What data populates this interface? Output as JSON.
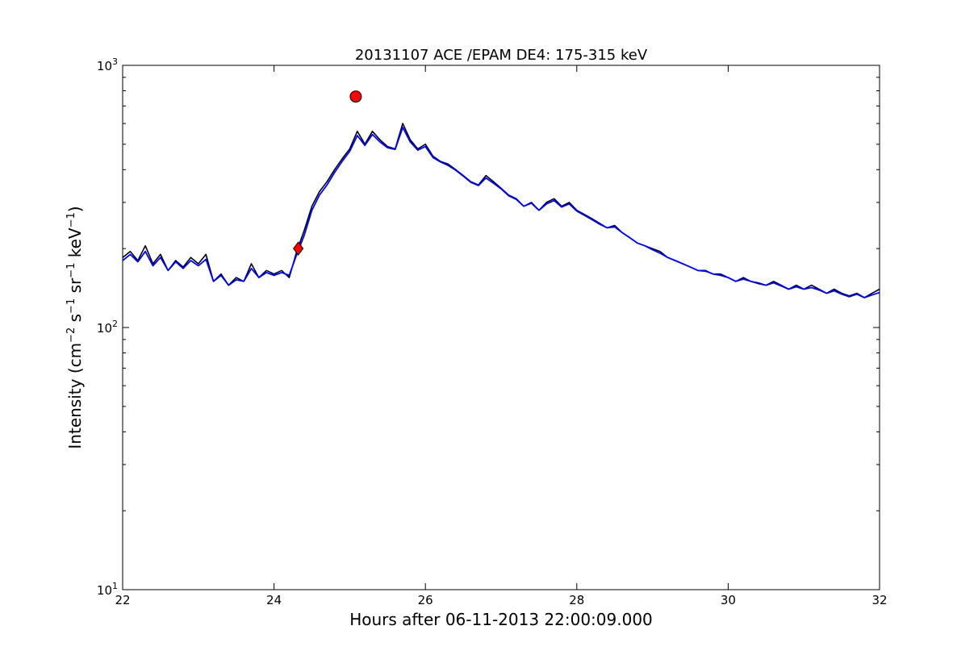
{
  "chart_data": {
    "type": "line",
    "title": "20131107 ACE /EPAM DE4: 175-315 keV",
    "xlabel": "Hours after 06-11-2013 22:00:09.000",
    "ylabel": {
      "prefix": "Intensity (cm",
      "sup1": "−2",
      "mid1": " s",
      "sup2": "−1",
      "mid2": " sr",
      "sup3": "−1",
      "mid3": " keV",
      "sup4": "−1",
      "suffix": ")"
    },
    "xlim": [
      22,
      32
    ],
    "ylim": [
      10,
      1000
    ],
    "yscale": "log",
    "grid": false,
    "x_ticks": [
      "22",
      "24",
      "26",
      "28",
      "30",
      "32"
    ],
    "y_ticks": [
      {
        "base": "10",
        "exp": "1"
      },
      {
        "base": "10",
        "exp": "2"
      },
      {
        "base": "10",
        "exp": "3"
      }
    ],
    "series": [
      {
        "color": "#000000",
        "x": [
          22.0,
          22.1,
          22.2,
          22.3,
          22.4,
          22.5,
          22.6,
          22.7,
          22.8,
          22.9,
          23.0,
          23.1,
          23.2,
          23.3,
          23.4,
          23.5,
          23.6,
          23.7,
          23.8,
          23.9,
          24.0,
          24.1,
          24.2,
          24.3,
          24.4,
          24.5,
          24.6,
          24.7,
          24.8,
          24.9,
          25.0,
          25.1,
          25.2,
          25.3,
          25.4,
          25.5,
          25.6,
          25.7,
          25.8,
          25.9,
          26.0,
          26.1,
          26.2,
          26.3,
          26.4,
          26.5,
          26.6,
          26.7,
          26.8,
          26.9,
          27.0,
          27.1,
          27.2,
          27.3,
          27.4,
          27.5,
          27.6,
          27.7,
          27.8,
          27.9,
          28.0,
          28.1,
          28.2,
          28.3,
          28.4,
          28.5,
          28.6,
          28.7,
          28.8,
          28.9,
          29.0,
          29.1,
          29.2,
          29.3,
          29.4,
          29.5,
          29.6,
          29.7,
          29.8,
          29.9,
          30.0,
          30.1,
          30.2,
          30.3,
          30.4,
          30.5,
          30.6,
          30.7,
          30.8,
          30.9,
          31.0,
          31.1,
          31.2,
          31.3,
          31.4,
          31.5,
          31.6,
          31.7,
          31.8,
          31.9,
          32.0
        ],
        "y": [
          185,
          195,
          180,
          205,
          175,
          190,
          165,
          180,
          170,
          185,
          175,
          190,
          150,
          160,
          145,
          155,
          150,
          175,
          155,
          165,
          160,
          165,
          155,
          195,
          235,
          290,
          330,
          360,
          400,
          440,
          480,
          560,
          500,
          560,
          520,
          490,
          480,
          600,
          520,
          480,
          500,
          450,
          430,
          420,
          400,
          380,
          360,
          350,
          380,
          360,
          340,
          320,
          310,
          290,
          300,
          280,
          300,
          310,
          290,
          300,
          280,
          270,
          260,
          250,
          240,
          245,
          230,
          220,
          210,
          205,
          200,
          195,
          185,
          180,
          175,
          170,
          165,
          165,
          160,
          160,
          155,
          150,
          155,
          150,
          148,
          145,
          150,
          145,
          140,
          145,
          140,
          145,
          140,
          135,
          140,
          135,
          132,
          135,
          130,
          135,
          140
        ]
      },
      {
        "color": "#0000ff",
        "x": [
          22.0,
          22.1,
          22.2,
          22.3,
          22.4,
          22.5,
          22.6,
          22.7,
          22.8,
          22.9,
          23.0,
          23.1,
          23.2,
          23.3,
          23.4,
          23.5,
          23.6,
          23.7,
          23.8,
          23.9,
          24.0,
          24.1,
          24.2,
          24.3,
          24.4,
          24.5,
          24.6,
          24.7,
          24.8,
          24.9,
          25.0,
          25.1,
          25.2,
          25.3,
          25.4,
          25.5,
          25.6,
          25.7,
          25.8,
          25.9,
          26.0,
          26.1,
          26.2,
          26.3,
          26.4,
          26.5,
          26.6,
          26.7,
          26.8,
          26.9,
          27.0,
          27.1,
          27.2,
          27.3,
          27.4,
          27.5,
          27.6,
          27.7,
          27.8,
          27.9,
          28.0,
          28.1,
          28.2,
          28.3,
          28.4,
          28.5,
          28.6,
          28.7,
          28.8,
          28.9,
          29.0,
          29.1,
          29.2,
          29.3,
          29.4,
          29.5,
          29.6,
          29.7,
          29.8,
          29.9,
          30.0,
          30.1,
          30.2,
          30.3,
          30.4,
          30.5,
          30.6,
          30.7,
          30.8,
          30.9,
          31.0,
          31.1,
          31.2,
          31.3,
          31.4,
          31.5,
          31.6,
          31.7,
          31.8,
          31.9,
          32.0
        ],
        "y": [
          180,
          190,
          178,
          195,
          172,
          185,
          165,
          178,
          168,
          180,
          172,
          182,
          150,
          158,
          145,
          152,
          150,
          168,
          155,
          162,
          158,
          162,
          158,
          190,
          225,
          280,
          320,
          350,
          390,
          430,
          470,
          540,
          495,
          545,
          510,
          485,
          478,
          580,
          510,
          475,
          490,
          445,
          428,
          415,
          398,
          378,
          358,
          348,
          372,
          355,
          338,
          318,
          308,
          290,
          298,
          280,
          296,
          305,
          288,
          296,
          278,
          268,
          258,
          248,
          240,
          242,
          230,
          220,
          210,
          205,
          198,
          192,
          185,
          180,
          175,
          170,
          165,
          164,
          160,
          158,
          155,
          150,
          153,
          150,
          147,
          145,
          148,
          144,
          140,
          143,
          140,
          142,
          139,
          135,
          138,
          134,
          131,
          134,
          130,
          133,
          136
        ]
      }
    ],
    "markers": [
      {
        "shape": "diamond",
        "color": "#ff0000",
        "x": 24.32,
        "y": 200
      },
      {
        "shape": "circle",
        "color": "#ff0000",
        "x": 25.08,
        "y": 760
      }
    ]
  }
}
